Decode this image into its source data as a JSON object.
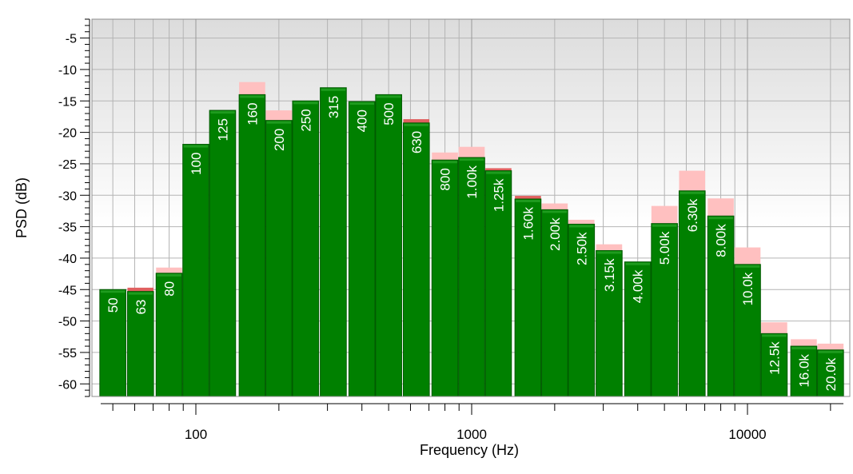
{
  "chart_data": {
    "type": "bar",
    "subtype": "third-octave-spectrum",
    "xlabel": "Frequency (Hz)",
    "ylabel": "PSD (dB)",
    "x_scale": "log",
    "x_ticks": [
      "100",
      "1000",
      "10000"
    ],
    "ylim": [
      -62,
      -2
    ],
    "y_ticks": [
      -5,
      -10,
      -15,
      -20,
      -25,
      -30,
      -35,
      -40,
      -45,
      -50,
      -55,
      -60
    ],
    "grid": true,
    "legend": "none",
    "categories": [
      "50",
      "63",
      "80",
      "100",
      "125",
      "160",
      "200",
      "250",
      "315",
      "400",
      "500",
      "630",
      "800",
      "1.00k",
      "1.25k",
      "1.60k",
      "2.00k",
      "2.50k",
      "3.15k",
      "4.00k",
      "5.00k",
      "6.30k",
      "8.00k",
      "10.0k",
      "12.5k",
      "16.0k",
      "20.0k"
    ],
    "center_freq": [
      50,
      63,
      80,
      100,
      125,
      160,
      200,
      250,
      315,
      400,
      500,
      630,
      800,
      1000,
      1250,
      1600,
      2000,
      2500,
      3150,
      4000,
      5000,
      6300,
      8000,
      10000,
      12500,
      16000,
      20000
    ],
    "series": [
      {
        "role": "current",
        "values": [
          -45.0,
          -45.3,
          -42.4,
          -21.9,
          -16.5,
          -14.0,
          -18.1,
          -15.0,
          -12.9,
          -15.1,
          -14.0,
          -18.5,
          -24.4,
          -24.0,
          -26.1,
          -30.6,
          -32.3,
          -34.6,
          -38.8,
          -40.6,
          -34.5,
          -29.3,
          -33.3,
          -41.0,
          -52.0,
          -54.0,
          -54.6
        ]
      },
      {
        "role": "peak-hold",
        "values": [
          -45.0,
          -44.7,
          -41.5,
          -21.9,
          -16.5,
          -12.0,
          -16.5,
          -15.0,
          -12.9,
          -15.1,
          -14.0,
          -17.9,
          -23.2,
          -22.3,
          -25.7,
          -30.1,
          -31.3,
          -33.9,
          -37.8,
          -40.6,
          -31.7,
          -26.1,
          -30.5,
          -38.3,
          -50.2,
          -52.9,
          -53.6
        ]
      }
    ],
    "colors": {
      "bar_fill": "#008000",
      "bar_edge": "#005a00",
      "bar_label": "#ffffff",
      "peak_hold": "#ffc0c0",
      "peak_hold_recent": "#e06060",
      "plot_bg_top": "#dcdcdc",
      "plot_bg_bottom": "#ffffff",
      "grid": "#b4b4b4",
      "frame": "#8c8c8c"
    }
  }
}
